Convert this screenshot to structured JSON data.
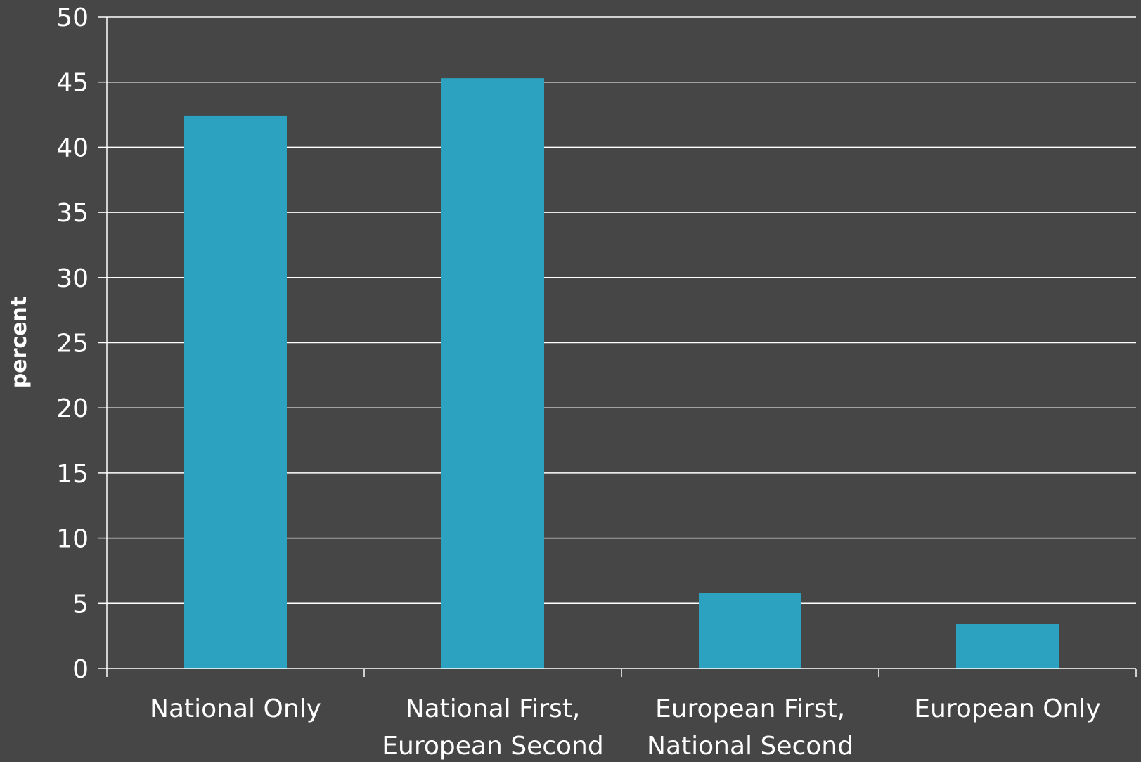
{
  "chart_data": {
    "type": "bar",
    "title": "",
    "xlabel": "",
    "ylabel": "percent",
    "ylim": [
      0,
      50
    ],
    "ytick_step": 5,
    "grid": true,
    "legend": "none",
    "categories": [
      [
        "National Only"
      ],
      [
        "National First,",
        "European Second"
      ],
      [
        "European First,",
        "National Second"
      ],
      [
        "European Only"
      ]
    ],
    "values": [
      42.4,
      45.3,
      5.8,
      3.4
    ]
  },
  "colors": {
    "background": "#464646",
    "bar": "#2ca2c0",
    "gridline": "#ffffff",
    "text": "#ffffff"
  }
}
